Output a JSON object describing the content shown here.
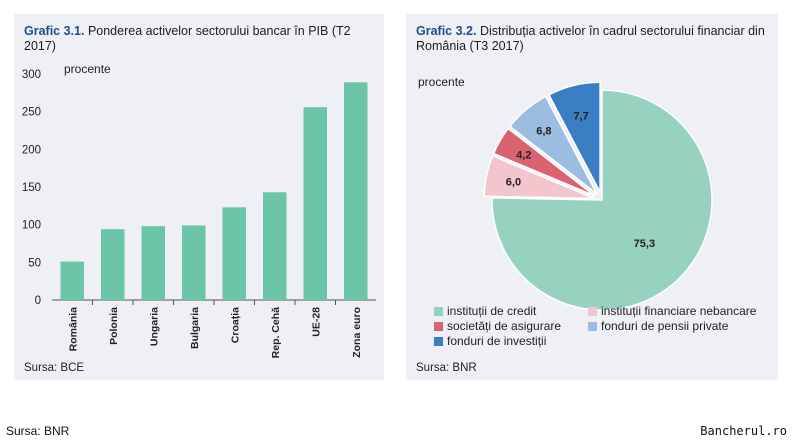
{
  "charts": [
    {
      "label": "Grafic 3.1.",
      "title": "Ponderea activelor sectorului bancar în PIB (T2 2017)",
      "unit": "procente",
      "source": "Sursa: BCE",
      "chart_data": {
        "type": "bar",
        "categories": [
          "România",
          "Polonia",
          "Ungaria",
          "Bulgaria",
          "Croația",
          "Rep. Cehă",
          "UE-28",
          "Zona euro"
        ],
        "values": [
          51,
          94,
          98,
          99,
          123,
          143,
          256,
          289
        ],
        "yticks": [
          0,
          50,
          100,
          150,
          200,
          250,
          300
        ],
        "ylim": [
          0,
          300
        ],
        "color": "#6cc5a6",
        "grid": false
      }
    },
    {
      "label": "Grafic 3.2.",
      "title": "Distribuția activelor în cadrul sectorului financiar din România (T3 2017)",
      "unit": "procente",
      "source": "Sursa: BNR",
      "chart_data": {
        "type": "pie",
        "slices": [
          {
            "name": "instituții de credit",
            "value": 75.3,
            "label": "75,3",
            "color": "#96d2bf"
          },
          {
            "name": "instituții financiare nebancare",
            "value": 6.0,
            "label": "6,0",
            "color": "#f2c6cc"
          },
          {
            "name": "societăți de asigurare",
            "value": 4.2,
            "label": "4,2",
            "color": "#d96470"
          },
          {
            "name": "fonduri de pensii private",
            "value": 6.8,
            "label": "6,8",
            "color": "#9dbde0"
          },
          {
            "name": "fonduri de investiții",
            "value": 7.7,
            "label": "7,7",
            "color": "#3a7dc2"
          }
        ],
        "legend_position": "bottom"
      }
    }
  ],
  "footer": {
    "source": "Sursa: BNR",
    "brand": "Bancherul.ro"
  }
}
